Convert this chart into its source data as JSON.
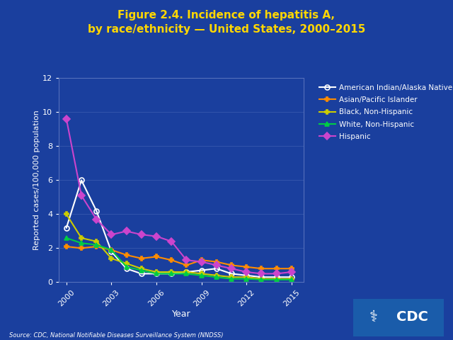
{
  "title_line1": "Figure 2.4. Incidence of hepatitis A,",
  "title_line2": "by race/ethnicity — United States, 2000–2015",
  "xlabel": "Year",
  "ylabel": "Reported cases/100,000 population",
  "source": "Source: CDC, National Notifiable Diseases Surveillance System (NNDSS)",
  "bg_outer": "#1a3f9e",
  "bg_plot": "#1a3f9e",
  "title_color": "#ffd700",
  "axis_label_color": "#ffffff",
  "tick_label_color": "#ffffff",
  "source_color": "#ffffff",
  "grid_color": "#5570bb",
  "years": [
    2000,
    2001,
    2002,
    2003,
    2004,
    2005,
    2006,
    2007,
    2008,
    2009,
    2010,
    2011,
    2012,
    2013,
    2014,
    2015
  ],
  "series": [
    {
      "label": "American Indian/Alaska Native",
      "color": "#ffffff",
      "marker": "o",
      "marker_fc": "none",
      "values": [
        3.2,
        6.0,
        4.2,
        1.8,
        0.8,
        0.5,
        0.5,
        0.5,
        0.6,
        0.7,
        0.8,
        0.5,
        0.4,
        0.3,
        0.3,
        0.3
      ]
    },
    {
      "label": "Asian/Pacific Islander",
      "color": "#ff8c00",
      "marker": "P",
      "marker_fc": "#ff8c00",
      "values": [
        2.1,
        2.0,
        2.1,
        1.9,
        1.6,
        1.4,
        1.5,
        1.3,
        1.0,
        1.3,
        1.2,
        1.0,
        0.9,
        0.8,
        0.8,
        0.8
      ]
    },
    {
      "label": "Black, Non-Hispanic",
      "color": "#cccc00",
      "marker": "P",
      "marker_fc": "#cccc00",
      "values": [
        4.0,
        2.6,
        2.4,
        1.4,
        1.1,
        0.8,
        0.6,
        0.6,
        0.6,
        0.5,
        0.4,
        0.3,
        0.3,
        0.2,
        0.2,
        0.2
      ]
    },
    {
      "label": "White, Non-Hispanic",
      "color": "#00cc44",
      "marker": "^",
      "marker_fc": "#00cc44",
      "values": [
        2.6,
        2.3,
        2.2,
        1.9,
        0.9,
        0.7,
        0.5,
        0.5,
        0.5,
        0.4,
        0.3,
        0.2,
        0.2,
        0.15,
        0.15,
        0.15
      ]
    },
    {
      "label": "Hispanic",
      "color": "#cc44cc",
      "marker": "D",
      "marker_fc": "#cc44cc",
      "values": [
        9.6,
        5.1,
        3.7,
        2.8,
        3.0,
        2.8,
        2.7,
        2.4,
        1.3,
        1.2,
        1.0,
        0.8,
        0.6,
        0.5,
        0.5,
        0.6
      ]
    }
  ],
  "ylim": [
    0,
    12
  ],
  "yticks": [
    0,
    2,
    4,
    6,
    8,
    10,
    12
  ],
  "xticks": [
    2000,
    2003,
    2006,
    2009,
    2012,
    2015
  ]
}
